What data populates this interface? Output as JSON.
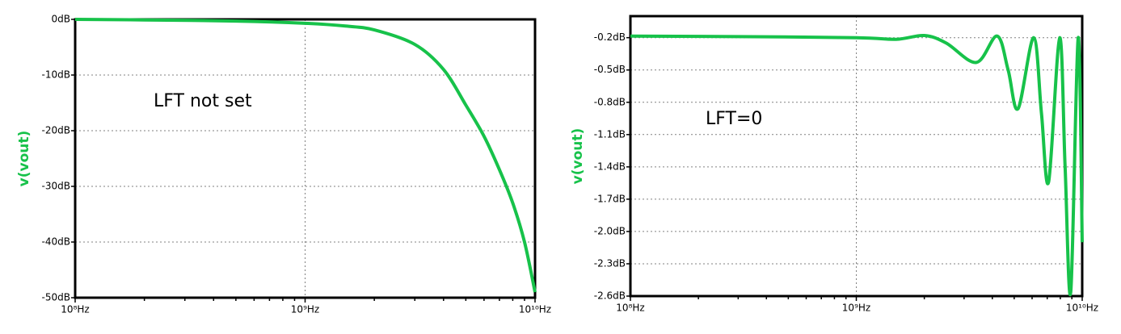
{
  "chart_data": [
    {
      "type": "line",
      "ylabel": "v(vout)",
      "annotation": "LFT not set",
      "log_x": true,
      "grid": true,
      "xlim": [
        100000000,
        10000000000
      ],
      "xticks": [
        {
          "value": 100000000,
          "label": "10⁸Hz"
        },
        {
          "value": 1000000000,
          "label": "10⁹Hz"
        },
        {
          "value": 10000000000,
          "label": "10¹⁰Hz"
        }
      ],
      "xminorticks": [
        200000000,
        300000000,
        400000000,
        500000000,
        600000000,
        700000000,
        800000000,
        900000000,
        2000000000,
        3000000000,
        4000000000,
        5000000000,
        6000000000,
        7000000000,
        8000000000,
        9000000000
      ],
      "ylim": [
        -50,
        0
      ],
      "yticks": [
        {
          "value": 0,
          "label": "0dB"
        },
        {
          "value": -10,
          "label": "-10dB"
        },
        {
          "value": -20,
          "label": "-20dB"
        },
        {
          "value": -30,
          "label": "-30dB"
        },
        {
          "value": -40,
          "label": "-40dB"
        },
        {
          "value": -50,
          "label": "-50dB"
        }
      ],
      "series": [
        {
          "name": "v(vout)",
          "color": "#17c24a",
          "x": [
            100000000,
            200000000,
            500000000,
            1000000000,
            1500000000,
            2000000000,
            3000000000,
            4000000000,
            5000000000,
            6000000000,
            7000000000,
            8000000000,
            9000000000,
            10000000000
          ],
          "values": [
            0,
            -0.1,
            -0.3,
            -0.7,
            -1.2,
            -1.9,
            -4.5,
            -9,
            -15.4,
            -21,
            -27,
            -33,
            -40,
            -49
          ]
        }
      ]
    },
    {
      "type": "line",
      "ylabel": "v(vout)",
      "annotation": "LFT=0",
      "log_x": true,
      "grid": true,
      "xlim": [
        100000000,
        10000000000
      ],
      "xticks": [
        {
          "value": 100000000,
          "label": "10⁸Hz"
        },
        {
          "value": 1000000000,
          "label": "10⁹Hz"
        },
        {
          "value": 10000000000,
          "label": "10¹⁰Hz"
        }
      ],
      "xminorticks": [
        200000000,
        300000000,
        400000000,
        500000000,
        600000000,
        700000000,
        800000000,
        900000000,
        2000000000,
        3000000000,
        4000000000,
        5000000000,
        6000000000,
        7000000000,
        8000000000,
        9000000000
      ],
      "ylim": [
        -2.6,
        0
      ],
      "yticks": [
        {
          "value": -0.2,
          "label": "-0.2dB"
        },
        {
          "value": -0.5,
          "label": "-0.5dB"
        },
        {
          "value": -0.8,
          "label": "-0.8dB"
        },
        {
          "value": -1.1,
          "label": "-1.1dB"
        },
        {
          "value": -1.4,
          "label": "-1.4dB"
        },
        {
          "value": -1.7,
          "label": "-1.7dB"
        },
        {
          "value": -2.0,
          "label": "-2.0dB"
        },
        {
          "value": -2.3,
          "label": "-2.3dB"
        },
        {
          "value": -2.6,
          "label": "-2.6dB"
        }
      ],
      "series": [
        {
          "name": "v(vout)",
          "color": "#17c24a",
          "x": [
            100000000,
            300000000,
            1000000000,
            1500000000,
            2000000000,
            2500000000,
            3400000000,
            4200000000,
            4700000000,
            5200000000,
            6100000000,
            6600000000,
            7100000000,
            7950000000,
            8400000000,
            8900000000,
            9600000000,
            10000000000
          ],
          "values": [
            -0.185,
            -0.19,
            -0.2,
            -0.215,
            -0.18,
            -0.25,
            -0.43,
            -0.185,
            -0.5,
            -0.86,
            -0.2,
            -0.9,
            -1.54,
            -0.2,
            -1.4,
            -2.56,
            -0.2,
            -2.1
          ]
        }
      ]
    }
  ]
}
